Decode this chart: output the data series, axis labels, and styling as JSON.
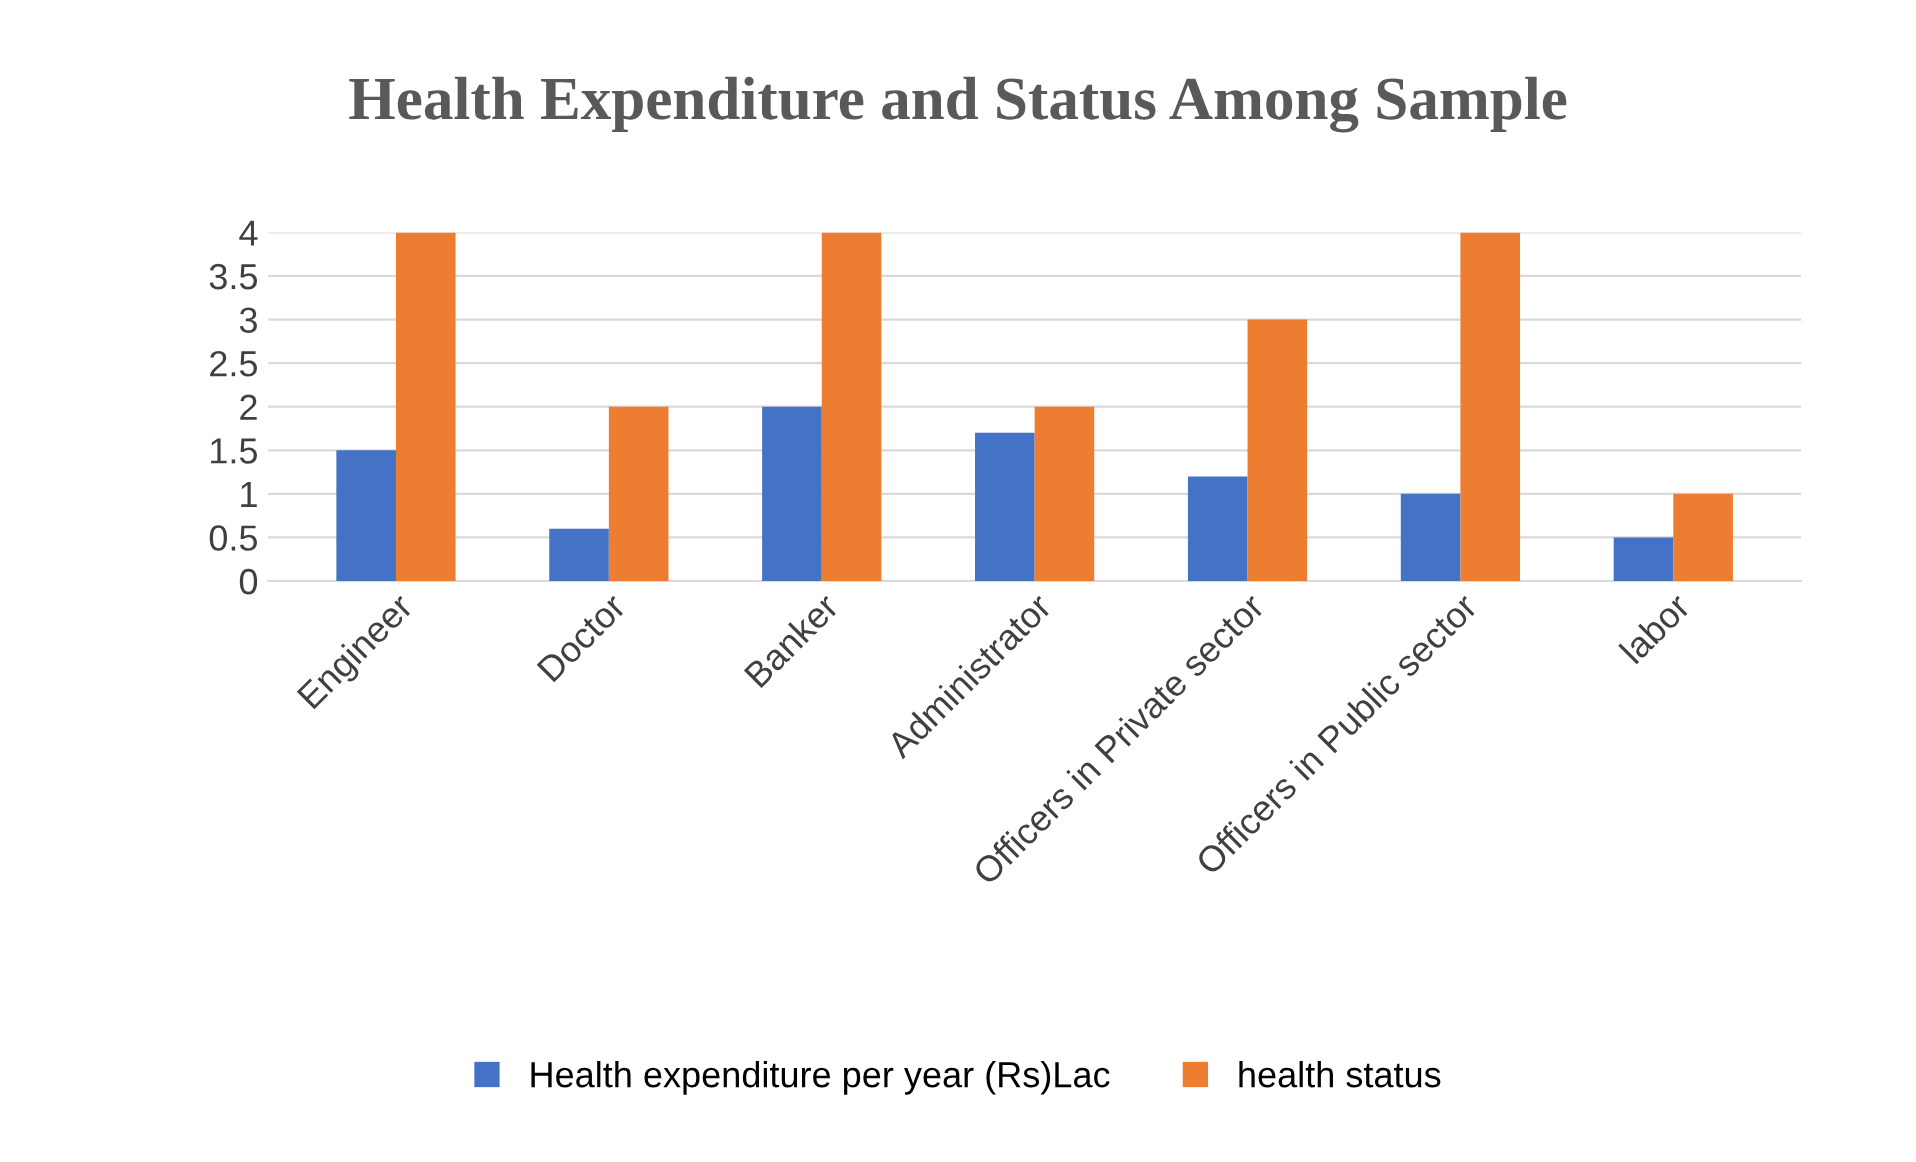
{
  "chart_data": {
    "type": "bar",
    "title": "Health Expenditure and Status Among Sample",
    "categories": [
      "Engineer",
      "Doctor",
      "Banker",
      "Administrator",
      "Officers in Private sector",
      "Officers in Public sector",
      "labor"
    ],
    "series": [
      {
        "name": "Health expenditure per year (Rs)Lac",
        "color": "#4472c4",
        "values": [
          1.5,
          0.6,
          2,
          1.7,
          1.2,
          1.0,
          0.5
        ]
      },
      {
        "name": "health status",
        "color": "#ed7d31",
        "values": [
          4,
          2,
          4,
          2,
          3,
          4,
          1
        ]
      }
    ],
    "ylim": [
      0,
      4
    ],
    "yticks": [
      0,
      0.5,
      1,
      1.5,
      2,
      2.5,
      3,
      3.5,
      4
    ],
    "grid": "y",
    "legend": "bottom"
  }
}
